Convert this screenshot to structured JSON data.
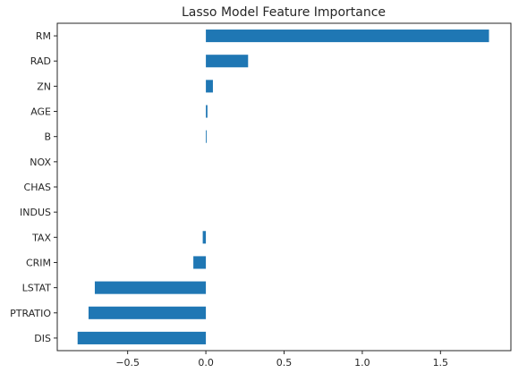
{
  "chart_data": {
    "type": "bar",
    "orientation": "horizontal",
    "title": "Lasso Model Feature Importance",
    "xlabel": "",
    "ylabel": "",
    "categories": [
      "DIS",
      "PTRATIO",
      "LSTAT",
      "CRIM",
      "TAX",
      "INDUS",
      "CHAS",
      "NOX",
      "B",
      "AGE",
      "ZN",
      "RAD",
      "RM"
    ],
    "values": [
      -0.82,
      -0.75,
      -0.71,
      -0.08,
      -0.02,
      0.0,
      0.0,
      0.0,
      0.005,
      0.01,
      0.045,
      0.27,
      1.81
    ],
    "xlim": [
      -0.95,
      1.95
    ],
    "xticks": [
      -0.5,
      0.0,
      0.5,
      1.0,
      1.5
    ],
    "xtick_labels": [
      "−0.5",
      "0.0",
      "0.5",
      "1.0",
      "1.5"
    ],
    "grid": false,
    "bar_color": "#1f77b4"
  }
}
